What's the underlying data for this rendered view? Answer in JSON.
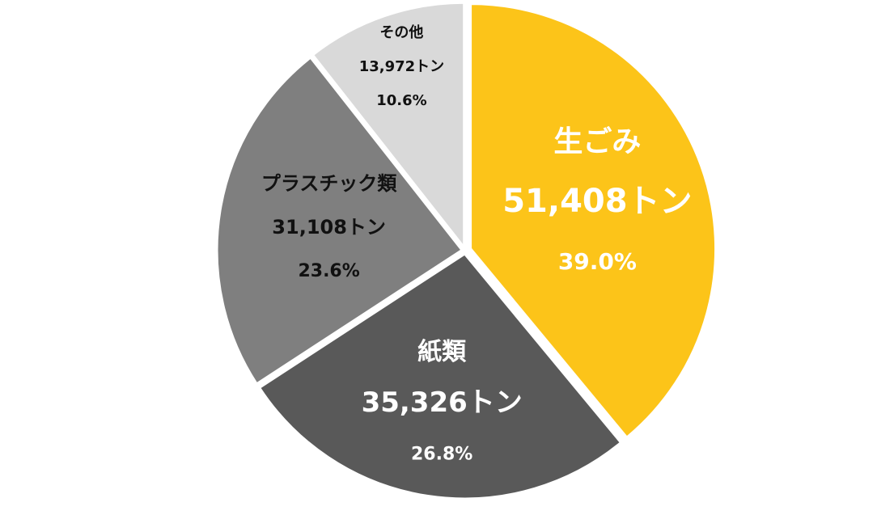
{
  "chart_data": {
    "type": "pie",
    "title": "",
    "slices": [
      {
        "name": "生ごみ",
        "amount_tons": 51408,
        "amount_label": "51,408トン",
        "percent": 39.0,
        "percent_label": "39.0%",
        "color": "#FCC419",
        "label_color": "#FFFFFF"
      },
      {
        "name": "紙類",
        "amount_tons": 35326,
        "amount_label": "35,326トン",
        "percent": 26.8,
        "percent_label": "26.8%",
        "color": "#595959",
        "label_color": "#FFFFFF"
      },
      {
        "name": "プラスチック類",
        "amount_tons": 31108,
        "amount_label": "31,108トン",
        "percent": 23.6,
        "percent_label": "23.6%",
        "color": "#7F7F7F",
        "label_color": "#111111"
      },
      {
        "name": "その他",
        "amount_tons": 13972,
        "amount_label": "13,972トン",
        "percent": 10.6,
        "percent_label": "10.6%",
        "color": "#D9D9D9",
        "label_color": "#111111"
      }
    ]
  }
}
